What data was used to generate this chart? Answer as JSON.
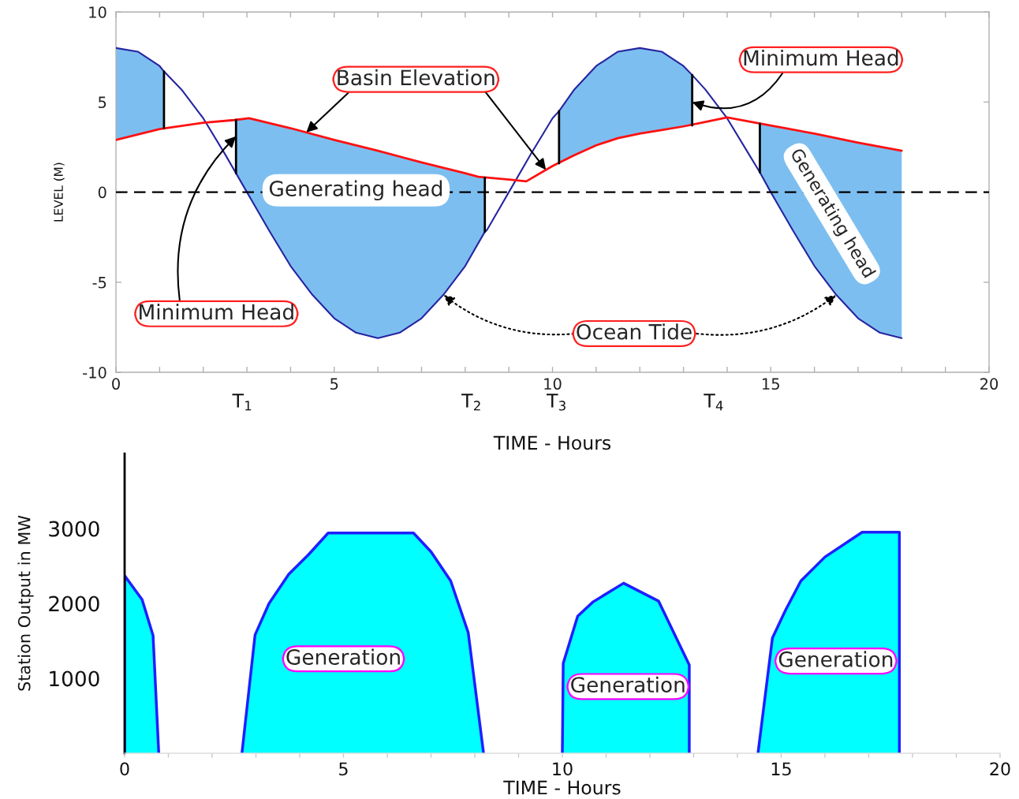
{
  "chart_data": [
    {
      "type": "line",
      "xlabel": "TIME - Hours",
      "ylabel": "LEVEL (M)",
      "xlim": [
        0,
        20
      ],
      "ylim": [
        -10,
        10
      ],
      "xticks": [
        0,
        {
          "value": 1,
          "label": null
        },
        {
          "value": 2,
          "label": null
        },
        {
          "value": 3,
          "label": null
        },
        {
          "value": 4,
          "label": null
        },
        5,
        {
          "value": 6,
          "label": null
        },
        {
          "value": 7,
          "label": null
        },
        {
          "value": 8,
          "label": null
        },
        {
          "value": 9,
          "label": null
        },
        10,
        {
          "value": 11,
          "label": null
        },
        {
          "value": 12,
          "label": null
        },
        {
          "value": 13,
          "label": null
        },
        {
          "value": 14,
          "label": null
        },
        15,
        {
          "value": 16,
          "label": null
        },
        {
          "value": 17,
          "label": null
        },
        {
          "value": 18,
          "label": null
        },
        {
          "value": 19,
          "label": null
        },
        20
      ],
      "yticks": [
        -10,
        -5,
        0,
        5,
        10
      ],
      "ref_lines": [
        {
          "axis": "y",
          "value": 0,
          "color": "#000000",
          "line_style": "dashed"
        }
      ],
      "series": [
        {
          "color": "#2525a0",
          "x": [
            0,
            0.5,
            1,
            1.1,
            1.5,
            2,
            2.5,
            2.75,
            3,
            3.5,
            4,
            4.5,
            5,
            5.5,
            6,
            6.5,
            7,
            7.5,
            8,
            8.45,
            8.5,
            9,
            9.5,
            10,
            10.15,
            10.5,
            11,
            11.5,
            12,
            12.5,
            13,
            13.2,
            13.5,
            14,
            14.5,
            14.75,
            15,
            15.5,
            16,
            16.5,
            17,
            17.5,
            18
          ],
          "values": [
            8.0,
            7.8,
            7.0,
            6.7,
            5.7,
            4.1,
            2.1,
            1.05,
            0.0,
            -2.1,
            -4.1,
            -5.7,
            -7.0,
            -7.8,
            -8.1,
            -7.8,
            -7.0,
            -5.7,
            -4.1,
            -2.2,
            -2.1,
            0.0,
            2.1,
            4.1,
            4.5,
            5.7,
            7.0,
            7.8,
            8.0,
            7.8,
            7.0,
            6.5,
            5.7,
            4.1,
            2.1,
            1.1,
            0.0,
            -2.1,
            -4.1,
            -5.7,
            -7.0,
            -7.8,
            -8.1
          ],
          "lower": [
            2.9,
            3.2,
            3.5,
            3.55,
            null,
            null,
            null,
            1.05,
            0.0,
            -2.1,
            -4.1,
            -5.7,
            -7.0,
            -7.8,
            -8.1,
            -7.8,
            -7.0,
            -5.7,
            -4.1,
            -2.2,
            null,
            null,
            null,
            null,
            1.6,
            2.05,
            2.6,
            3.0,
            3.25,
            3.45,
            3.65,
            3.7,
            null,
            null,
            null,
            1.1,
            0.0,
            -2.1,
            -4.1,
            -5.7,
            -7.0,
            -7.8,
            -8.1
          ],
          "upper": [
            8.0,
            7.8,
            7.0,
            6.7,
            null,
            null,
            null,
            4.0,
            4.1,
            3.85,
            3.55,
            3.25,
            2.9,
            2.6,
            2.3,
            2.0,
            1.65,
            1.35,
            1.05,
            0.8,
            null,
            null,
            null,
            null,
            4.5,
            5.7,
            7.0,
            7.8,
            8.0,
            7.8,
            7.0,
            6.5,
            null,
            null,
            null,
            3.8,
            3.7,
            3.45,
            3.25,
            3.0,
            2.75,
            2.55,
            2.3
          ]
        },
        {
          "name": "Basin Elevation",
          "color": "#ff1010",
          "x": [
            0,
            1,
            2,
            2.7,
            3.05,
            4,
            5,
            6,
            7,
            8,
            8.3,
            9,
            9.4,
            10,
            10.5,
            11,
            11.5,
            12,
            12.5,
            13,
            13.5,
            14,
            15,
            16,
            17,
            18
          ],
          "values": [
            2.9,
            3.5,
            3.85,
            4.0,
            4.1,
            3.55,
            2.9,
            2.3,
            1.65,
            1.05,
            0.85,
            0.7,
            0.6,
            1.45,
            2.05,
            2.6,
            3.0,
            3.25,
            3.45,
            3.65,
            3.9,
            4.15,
            3.7,
            3.25,
            2.75,
            2.3
          ]
        },
        {
          "color": "#000000",
          "x": [
            1.1,
            1.1
          ],
          "values": [
            3.55,
            6.7
          ]
        },
        {
          "color": "#000000",
          "x": [
            2.75,
            2.75
          ],
          "values": [
            1.05,
            4.0
          ]
        },
        {
          "color": "#000000",
          "x": [
            8.45,
            8.45
          ],
          "values": [
            -2.2,
            0.8
          ]
        },
        {
          "color": "#000000",
          "x": [
            10.15,
            10.15
          ],
          "values": [
            1.6,
            4.5
          ]
        },
        {
          "color": "#000000",
          "x": [
            13.2,
            13.2
          ],
          "values": [
            3.7,
            6.5
          ]
        },
        {
          "color": "#000000",
          "x": [
            14.75,
            14.75
          ],
          "values": [
            1.1,
            3.8
          ]
        }
      ],
      "annotations": [
        {
          "text": "Minimum Head",
          "x": 2.75,
          "y": 3.1
        },
        {
          "text": "Minimum Head",
          "x": 13.2,
          "y": 5.0
        },
        {
          "text": "Ocean Tide",
          "x": 7.5,
          "y": -5.7
        },
        "Generating head",
        "Generating head",
        "T$_{1}$",
        "T$_{2}$",
        "T$_{3}$",
        "T$_{4}$"
      ]
    },
    {
      "type": "area",
      "xlabel": "TIME - Hours",
      "ylabel": "Station Output in MW",
      "xlim": [
        0,
        20
      ],
      "ylim": [
        0,
        4000
      ],
      "xticks": [
        0,
        {
          "value": 1,
          "label": null
        },
        {
          "value": 2,
          "label": null
        },
        {
          "value": 3,
          "label": null
        },
        {
          "value": 4,
          "label": null
        },
        5,
        {
          "value": 6,
          "label": null
        },
        {
          "value": 7,
          "label": null
        },
        {
          "value": 8,
          "label": null
        },
        {
          "value": 9,
          "label": null
        },
        10,
        {
          "value": 11,
          "label": null
        },
        {
          "value": 12,
          "label": null
        },
        {
          "value": 13,
          "label": null
        },
        {
          "value": 14,
          "label": null
        },
        15,
        {
          "value": 16,
          "label": null
        },
        {
          "value": 17,
          "label": null
        },
        {
          "value": 18,
          "label": null
        },
        {
          "value": 19,
          "label": null
        },
        20
      ],
      "yticks": [
        1000,
        2000,
        3000
      ],
      "series": [
        {
          "color": "#00ffff",
          "x": [
            0,
            0,
            0.4,
            0.65,
            0.78,
            1.5,
            2.68,
            2.98,
            3.3,
            3.75,
            4.2,
            4.65,
            6.6,
            7.0,
            7.45,
            7.85,
            8.2,
            9.0,
            10.0,
            10.02,
            10.35,
            10.7,
            11.4,
            12.2,
            12.9,
            12.9,
            13.5,
            14.47,
            14.8,
            15.1,
            15.45,
            16.0,
            16.85,
            17.7,
            17.7
          ],
          "values": [
            0,
            2370,
            2050,
            1570,
            0,
            null,
            0,
            1580,
            2000,
            2390,
            2650,
            2940,
            2940,
            2690,
            2300,
            1610,
            0,
            null,
            0,
            1200,
            1830,
            2020,
            2270,
            2030,
            1180,
            0,
            null,
            0,
            1540,
            1910,
            2300,
            2620,
            2950,
            2950,
            0
          ]
        }
      ],
      "annotations": [
        "Generation",
        "Generation",
        "Generation"
      ]
    }
  ]
}
